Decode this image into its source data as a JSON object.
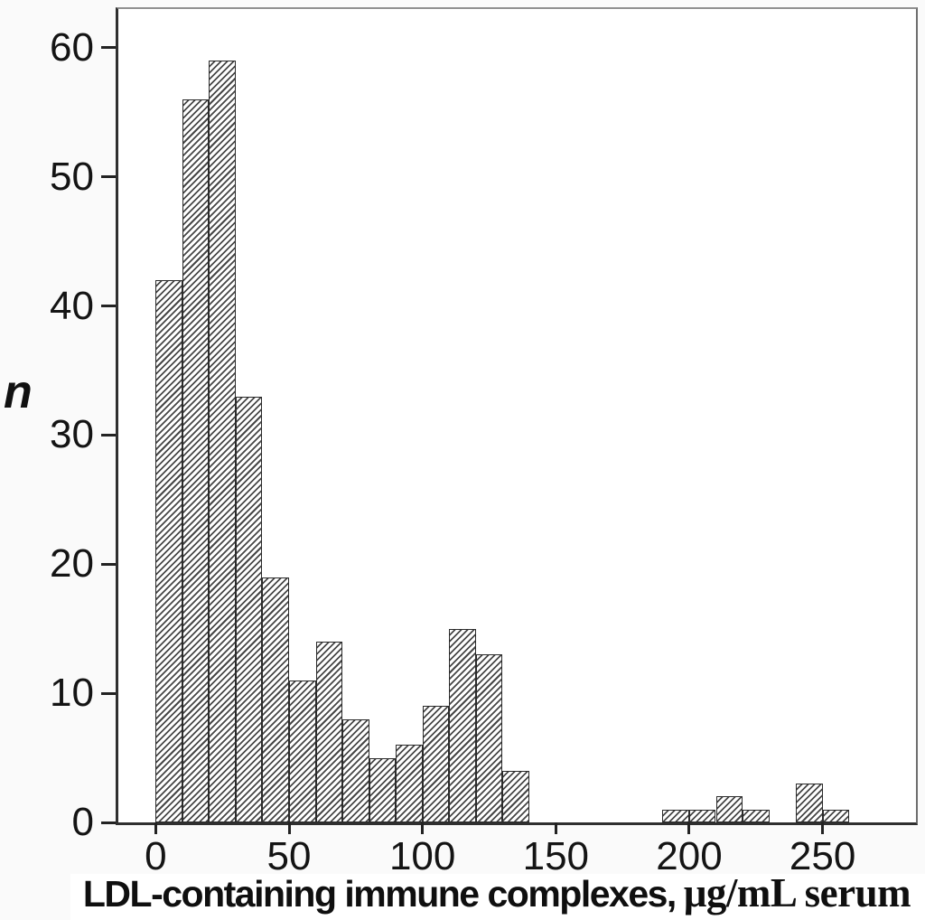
{
  "figure": {
    "background": "#fafafa",
    "panel_background": "#ffffff",
    "ink_color": "#222222",
    "frame_gray": "#8c8c8c",
    "bar_fill": "#ffffff",
    "hatch_color": "#474747",
    "bar_border_color": "#2b2b2b"
  },
  "chart_data": {
    "type": "bar",
    "subtype": "histogram",
    "title": "",
    "xlabel": "LDL-containing immune complexes, μg/mL serum",
    "xlabel_main": "LDL-containing immune complexes,",
    "xlabel_units": "μg/mL serum",
    "ylabel": "n",
    "bin_width": 10,
    "bins": [
      {
        "x0": 0,
        "count": 42
      },
      {
        "x0": 10,
        "count": 56
      },
      {
        "x0": 20,
        "count": 59
      },
      {
        "x0": 30,
        "count": 33
      },
      {
        "x0": 40,
        "count": 19
      },
      {
        "x0": 50,
        "count": 11
      },
      {
        "x0": 60,
        "count": 14
      },
      {
        "x0": 70,
        "count": 8
      },
      {
        "x0": 80,
        "count": 5
      },
      {
        "x0": 90,
        "count": 6
      },
      {
        "x0": 100,
        "count": 9
      },
      {
        "x0": 110,
        "count": 15
      },
      {
        "x0": 120,
        "count": 13
      },
      {
        "x0": 130,
        "count": 4
      },
      {
        "x0": 190,
        "count": 1
      },
      {
        "x0": 200,
        "count": 1
      },
      {
        "x0": 210,
        "count": 2
      },
      {
        "x0": 220,
        "count": 1
      },
      {
        "x0": 240,
        "count": 3
      },
      {
        "x0": 250,
        "count": 1
      }
    ],
    "x_ticks": [
      0,
      50,
      100,
      150,
      200,
      250
    ],
    "y_ticks": [
      0,
      10,
      20,
      30,
      40,
      50,
      60
    ],
    "xlim": [
      -14,
      285
    ],
    "ylim": [
      0,
      63
    ],
    "grid": false,
    "legend": "none",
    "hatch": "diagonal-forward"
  }
}
